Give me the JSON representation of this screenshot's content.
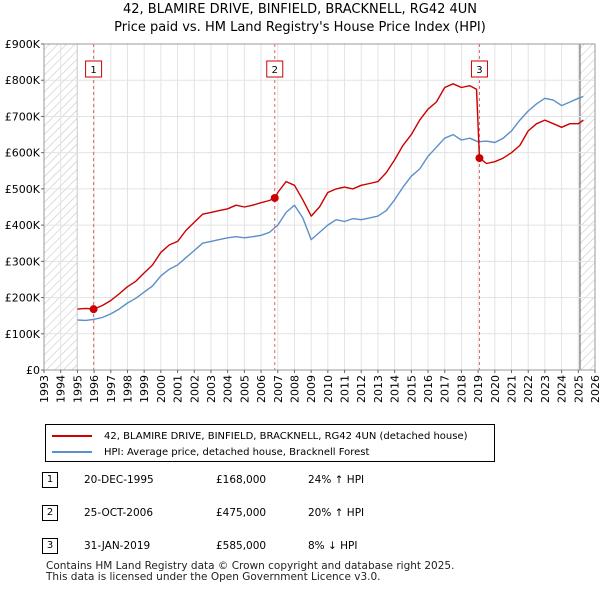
{
  "title": {
    "line1": "42, BLAMIRE DRIVE, BINFIELD, BRACKNELL, RG42 4UN",
    "line2": "Price paid vs. HM Land Registry's House Price Index (HPI)"
  },
  "chart_data": {
    "type": "line",
    "xlim": [
      1993,
      2026
    ],
    "ylim": [
      0,
      900000
    ],
    "y_ticks": [
      0,
      100000,
      200000,
      300000,
      400000,
      500000,
      600000,
      700000,
      800000,
      900000
    ],
    "y_tick_labels": [
      "£0",
      "£100K",
      "£200K",
      "£300K",
      "£400K",
      "£500K",
      "£600K",
      "£700K",
      "£800K",
      "£900K"
    ],
    "x_ticks": [
      1993,
      1994,
      1995,
      1996,
      1997,
      1998,
      1999,
      2000,
      2001,
      2002,
      2003,
      2004,
      2005,
      2006,
      2007,
      2008,
      2009,
      2010,
      2011,
      2012,
      2013,
      2014,
      2015,
      2016,
      2017,
      2018,
      2019,
      2020,
      2021,
      2022,
      2023,
      2024,
      2025,
      2026
    ],
    "x_tick_labels": [
      "1993",
      "1994",
      "1995",
      "1996",
      "1997",
      "1998",
      "1999",
      "2000",
      "2001",
      "2002",
      "2003",
      "2004",
      "2005",
      "2006",
      "2007",
      "2008",
      "2009",
      "2010",
      "2011",
      "2012",
      "2013",
      "2014",
      "2015",
      "2016",
      "2017",
      "2018",
      "2019",
      "2020",
      "2021",
      "2022",
      "2023",
      "2024",
      "2025",
      "2026"
    ],
    "hatched_ranges": [
      [
        1993,
        1995.0
      ],
      [
        2025.1,
        2026
      ]
    ],
    "series": [
      {
        "name": "42, BLAMIRE DRIVE, BINFIELD, BRACKNELL, RG42 4UN (detached house)",
        "color": "#cc0000",
        "x": [
          1995.0,
          1995.5,
          1995.97,
          1996.5,
          1997.0,
          1997.5,
          1998.0,
          1998.5,
          1999.0,
          1999.5,
          2000.0,
          2000.5,
          2001.0,
          2001.5,
          2002.0,
          2002.5,
          2003.0,
          2003.5,
          2004.0,
          2004.5,
          2005.0,
          2005.5,
          2006.0,
          2006.5,
          2006.82,
          2007.0,
          2007.5,
          2008.0,
          2008.5,
          2009.0,
          2009.5,
          2010.0,
          2010.5,
          2011.0,
          2011.5,
          2012.0,
          2012.5,
          2013.0,
          2013.5,
          2014.0,
          2014.5,
          2015.0,
          2015.5,
          2016.0,
          2016.5,
          2017.0,
          2017.5,
          2018.0,
          2018.5,
          2018.9,
          2019.08,
          2019.5,
          2020.0,
          2020.5,
          2021.0,
          2021.5,
          2022.0,
          2022.5,
          2023.0,
          2023.5,
          2024.0,
          2024.5,
          2025.0,
          2025.3
        ],
        "values": [
          168000,
          170000,
          168000,
          178000,
          192000,
          210000,
          230000,
          245000,
          268000,
          290000,
          325000,
          345000,
          355000,
          385000,
          408000,
          430000,
          435000,
          440000,
          445000,
          455000,
          450000,
          455000,
          462000,
          468000,
          475000,
          490000,
          520000,
          510000,
          470000,
          425000,
          450000,
          490000,
          500000,
          505000,
          500000,
          510000,
          515000,
          520000,
          545000,
          580000,
          620000,
          650000,
          690000,
          720000,
          740000,
          780000,
          790000,
          780000,
          785000,
          775000,
          585000,
          570000,
          575000,
          585000,
          600000,
          620000,
          660000,
          680000,
          690000,
          680000,
          670000,
          680000,
          680000,
          690000
        ]
      },
      {
        "name": "HPI: Average price, detached house, Bracknell Forest",
        "color": "#5b8fc9",
        "x": [
          1995.0,
          1995.5,
          1996.0,
          1996.5,
          1997.0,
          1997.5,
          1998.0,
          1998.5,
          1999.0,
          1999.5,
          2000.0,
          2000.5,
          2001.0,
          2001.5,
          2002.0,
          2002.5,
          2003.0,
          2003.5,
          2004.0,
          2004.5,
          2005.0,
          2005.5,
          2006.0,
          2006.5,
          2007.0,
          2007.5,
          2008.0,
          2008.5,
          2009.0,
          2009.5,
          2010.0,
          2010.5,
          2011.0,
          2011.5,
          2012.0,
          2012.5,
          2013.0,
          2013.5,
          2014.0,
          2014.5,
          2015.0,
          2015.5,
          2016.0,
          2016.5,
          2017.0,
          2017.5,
          2018.0,
          2018.5,
          2019.0,
          2019.5,
          2020.0,
          2020.5,
          2021.0,
          2021.5,
          2022.0,
          2022.5,
          2023.0,
          2023.5,
          2024.0,
          2024.5,
          2025.0,
          2025.3
        ],
        "values": [
          138000,
          137000,
          140000,
          145000,
          155000,
          168000,
          185000,
          198000,
          215000,
          232000,
          260000,
          278000,
          290000,
          310000,
          330000,
          350000,
          355000,
          360000,
          365000,
          368000,
          365000,
          368000,
          372000,
          380000,
          400000,
          435000,
          455000,
          420000,
          360000,
          380000,
          400000,
          415000,
          410000,
          418000,
          415000,
          420000,
          425000,
          440000,
          470000,
          505000,
          535000,
          555000,
          590000,
          615000,
          640000,
          650000,
          635000,
          640000,
          630000,
          632000,
          628000,
          640000,
          660000,
          690000,
          715000,
          735000,
          750000,
          745000,
          730000,
          740000,
          750000,
          755000
        ]
      }
    ],
    "sales": [
      {
        "label": "1",
        "x": 1995.97,
        "value": 168000
      },
      {
        "label": "2",
        "x": 2006.82,
        "value": 475000
      },
      {
        "label": "3",
        "x": 2019.08,
        "value": 585000
      }
    ]
  },
  "legend": {
    "property_label": "42, BLAMIRE DRIVE, BINFIELD, BRACKNELL, RG42 4UN (detached house)",
    "hpi_label": "HPI: Average price, detached house, Bracknell Forest",
    "property_color": "#cc0000",
    "hpi_color": "#5b8fc9"
  },
  "sales_table": [
    {
      "num": "1",
      "date": "20-DEC-1995",
      "price": "£168,000",
      "hpi": "24% ↑ HPI"
    },
    {
      "num": "2",
      "date": "25-OCT-2006",
      "price": "£475,000",
      "hpi": "20% ↑ HPI"
    },
    {
      "num": "3",
      "date": "31-JAN-2019",
      "price": "£585,000",
      "hpi": "8% ↓ HPI"
    }
  ],
  "footer": {
    "line1": "Contains HM Land Registry data © Crown copyright and database right 2025.",
    "line2": "This data is licensed under the Open Government Licence v3.0."
  }
}
